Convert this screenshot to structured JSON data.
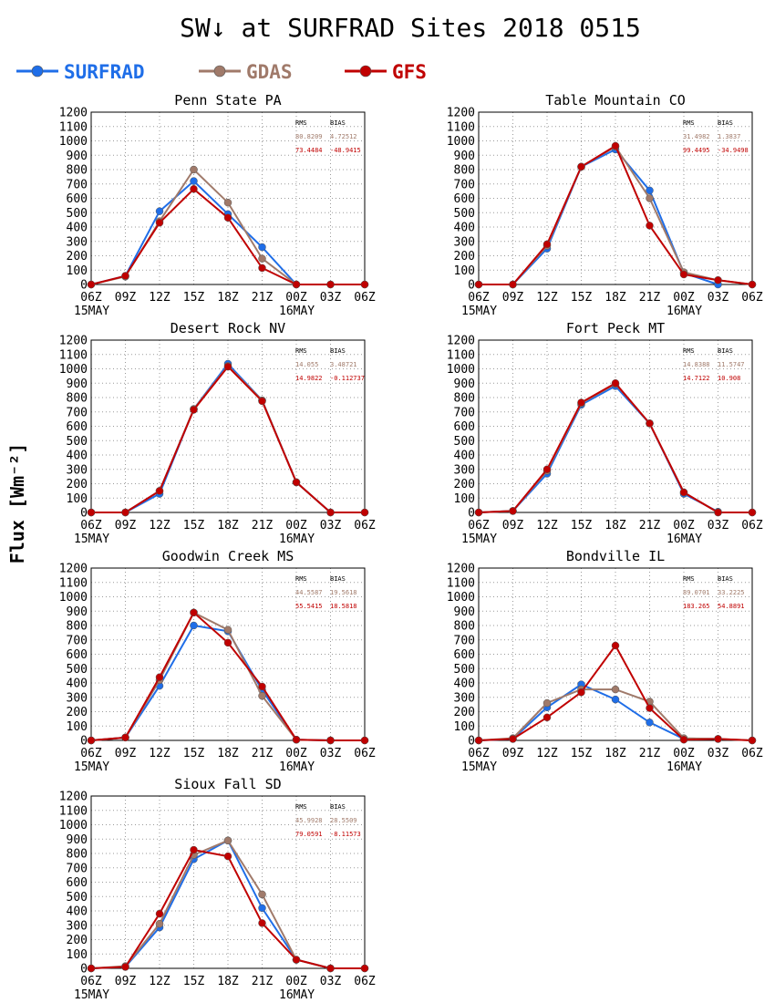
{
  "title": "SW↓ at SURFRAD Sites    2018 0515",
  "ylabel": "Flux [Wm⁻²]",
  "colors": {
    "SURFRAD": "#1f6ee8",
    "GDAS": "#a07a6a",
    "GFS": "#c00000"
  },
  "legend": [
    "SURFRAD",
    "GDAS",
    "GFS"
  ],
  "chart_data": [
    {
      "type": "line",
      "title": "Penn State PA",
      "x": [
        "06Z",
        "09Z",
        "12Z",
        "15Z",
        "18Z",
        "21Z",
        "00Z",
        "03Z",
        "06Z"
      ],
      "date_labels": [
        "15MAY",
        "16MAY"
      ],
      "ylim": [
        0,
        1200
      ],
      "yticks": [
        0,
        100,
        200,
        300,
        400,
        500,
        600,
        700,
        800,
        900,
        1000,
        1100,
        1200
      ],
      "grid": true,
      "stats": {
        "headers": [
          "RMS",
          "BIAS"
        ],
        "GDAS": [
          "80.8209",
          "4.72512"
        ],
        "GFS": [
          "73.4484",
          "-48.9415"
        ]
      },
      "series": [
        {
          "name": "SURFRAD",
          "values": [
            0,
            60,
            510,
            720,
            490,
            260,
            0,
            null,
            null
          ]
        },
        {
          "name": "GDAS",
          "values": [
            0,
            55,
            440,
            800,
            570,
            180,
            0,
            0,
            0
          ]
        },
        {
          "name": "GFS",
          "values": [
            0,
            60,
            430,
            665,
            465,
            115,
            0,
            0,
            0
          ]
        }
      ]
    },
    {
      "type": "line",
      "title": "Table Mountain CO",
      "x": [
        "06Z",
        "09Z",
        "12Z",
        "15Z",
        "18Z",
        "21Z",
        "00Z",
        "03Z",
        "06Z"
      ],
      "date_labels": [
        "15MAY",
        "16MAY"
      ],
      "ylim": [
        0,
        1200
      ],
      "yticks": [
        0,
        100,
        200,
        300,
        400,
        500,
        600,
        700,
        800,
        900,
        1000,
        1100,
        1200
      ],
      "grid": true,
      "stats": {
        "headers": [
          "RMS",
          "BIAS"
        ],
        "GDAS": [
          "31.4982",
          "1.3837"
        ],
        "GFS": [
          "99.4495",
          "-34.9498"
        ]
      },
      "series": [
        {
          "name": "SURFRAD",
          "values": [
            0,
            0,
            250,
            820,
            940,
            655,
            80,
            0,
            null
          ]
        },
        {
          "name": "GDAS",
          "values": [
            0,
            0,
            270,
            820,
            960,
            600,
            85,
            30,
            0
          ]
        },
        {
          "name": "GFS",
          "values": [
            0,
            0,
            280,
            820,
            965,
            410,
            70,
            30,
            0
          ]
        }
      ]
    },
    {
      "type": "line",
      "title": "Desert Rock NV",
      "x": [
        "06Z",
        "09Z",
        "12Z",
        "15Z",
        "18Z",
        "21Z",
        "00Z",
        "03Z",
        "06Z"
      ],
      "date_labels": [
        "15MAY",
        "16MAY"
      ],
      "ylim": [
        0,
        1200
      ],
      "yticks": [
        0,
        100,
        200,
        300,
        400,
        500,
        600,
        700,
        800,
        900,
        1000,
        1100,
        1200
      ],
      "grid": true,
      "stats": {
        "headers": [
          "RMS",
          "BIAS"
        ],
        "GDAS": [
          "14.055",
          "3.48721"
        ],
        "GFS": [
          "14.9822",
          "-0.112737"
        ]
      },
      "series": [
        {
          "name": "SURFRAD",
          "values": [
            0,
            0,
            130,
            720,
            1035,
            780,
            210,
            0,
            null
          ]
        },
        {
          "name": "GDAS",
          "values": [
            0,
            0,
            150,
            720,
            1020,
            780,
            210,
            0,
            0
          ]
        },
        {
          "name": "GFS",
          "values": [
            0,
            0,
            150,
            715,
            1015,
            775,
            210,
            0,
            0
          ]
        }
      ]
    },
    {
      "type": "line",
      "title": "Fort Peck MT",
      "x": [
        "06Z",
        "09Z",
        "12Z",
        "15Z",
        "18Z",
        "21Z",
        "00Z",
        "03Z",
        "06Z"
      ],
      "date_labels": [
        "15MAY",
        "16MAY"
      ],
      "ylim": [
        0,
        1200
      ],
      "yticks": [
        0,
        100,
        200,
        300,
        400,
        500,
        600,
        700,
        800,
        900,
        1000,
        1100,
        1200
      ],
      "grid": true,
      "stats": {
        "headers": [
          "RMS",
          "BIAS"
        ],
        "GDAS": [
          "14.8388",
          "11.5747"
        ],
        "GFS": [
          "14.7122",
          "10.908"
        ]
      },
      "series": [
        {
          "name": "SURFRAD",
          "values": [
            0,
            10,
            270,
            750,
            880,
            620,
            130,
            5,
            null
          ]
        },
        {
          "name": "GDAS",
          "values": [
            0,
            10,
            290,
            760,
            895,
            620,
            140,
            0,
            0
          ]
        },
        {
          "name": "GFS",
          "values": [
            0,
            10,
            300,
            765,
            900,
            620,
            140,
            0,
            0
          ]
        }
      ]
    },
    {
      "type": "line",
      "title": "Goodwin Creek MS",
      "x": [
        "06Z",
        "09Z",
        "12Z",
        "15Z",
        "18Z",
        "21Z",
        "00Z",
        "03Z",
        "06Z"
      ],
      "date_labels": [
        "15MAY",
        "16MAY"
      ],
      "ylim": [
        0,
        1200
      ],
      "yticks": [
        0,
        100,
        200,
        300,
        400,
        500,
        600,
        700,
        800,
        900,
        1000,
        1100,
        1200
      ],
      "grid": true,
      "stats": {
        "headers": [
          "RMS",
          "BIAS"
        ],
        "GDAS": [
          "44.5587",
          "19.5618"
        ],
        "GFS": [
          "55.5415",
          "18.5818"
        ]
      },
      "series": [
        {
          "name": "SURFRAD",
          "values": [
            0,
            20,
            380,
            800,
            760,
            350,
            5,
            0,
            null
          ]
        },
        {
          "name": "GDAS",
          "values": [
            0,
            20,
            420,
            890,
            770,
            310,
            5,
            0,
            0
          ]
        },
        {
          "name": "GFS",
          "values": [
            0,
            20,
            440,
            890,
            680,
            375,
            5,
            0,
            0
          ]
        }
      ]
    },
    {
      "type": "line",
      "title": "Bondville IL",
      "x": [
        "06Z",
        "09Z",
        "12Z",
        "15Z",
        "18Z",
        "21Z",
        "00Z",
        "03Z",
        "06Z"
      ],
      "date_labels": [
        "15MAY",
        "16MAY"
      ],
      "ylim": [
        0,
        1200
      ],
      "yticks": [
        0,
        100,
        200,
        300,
        400,
        500,
        600,
        700,
        800,
        900,
        1000,
        1100,
        1200
      ],
      "grid": true,
      "stats": {
        "headers": [
          "RMS",
          "BIAS"
        ],
        "GDAS": [
          "89.0701",
          "33.2225"
        ],
        "GFS": [
          "183.265",
          "54.8891"
        ]
      },
      "series": [
        {
          "name": "SURFRAD",
          "values": [
            0,
            10,
            230,
            390,
            285,
            125,
            10,
            10,
            null
          ]
        },
        {
          "name": "GDAS",
          "values": [
            0,
            15,
            260,
            355,
            355,
            270,
            15,
            10,
            0
          ]
        },
        {
          "name": "GFS",
          "values": [
            0,
            10,
            160,
            335,
            660,
            225,
            5,
            10,
            0
          ]
        }
      ]
    },
    {
      "type": "line",
      "title": "Sioux Fall SD",
      "x": [
        "06Z",
        "09Z",
        "12Z",
        "15Z",
        "18Z",
        "21Z",
        "00Z",
        "03Z",
        "06Z"
      ],
      "date_labels": [
        "15MAY",
        "16MAY"
      ],
      "ylim": [
        0,
        1200
      ],
      "yticks": [
        0,
        100,
        200,
        300,
        400,
        500,
        600,
        700,
        800,
        900,
        1000,
        1100,
        1200
      ],
      "grid": true,
      "stats": {
        "headers": [
          "RMS",
          "BIAS"
        ],
        "GDAS": [
          "45.9928",
          "28.5509"
        ],
        "GFS": [
          "79.0591",
          "-8.11573"
        ]
      },
      "series": [
        {
          "name": "SURFRAD",
          "values": [
            0,
            10,
            285,
            760,
            890,
            420,
            60,
            0,
            null
          ]
        },
        {
          "name": "GDAS",
          "values": [
            0,
            15,
            310,
            790,
            890,
            515,
            60,
            0,
            0
          ]
        },
        {
          "name": "GFS",
          "values": [
            0,
            10,
            380,
            825,
            780,
            315,
            60,
            0,
            0
          ]
        }
      ]
    }
  ]
}
